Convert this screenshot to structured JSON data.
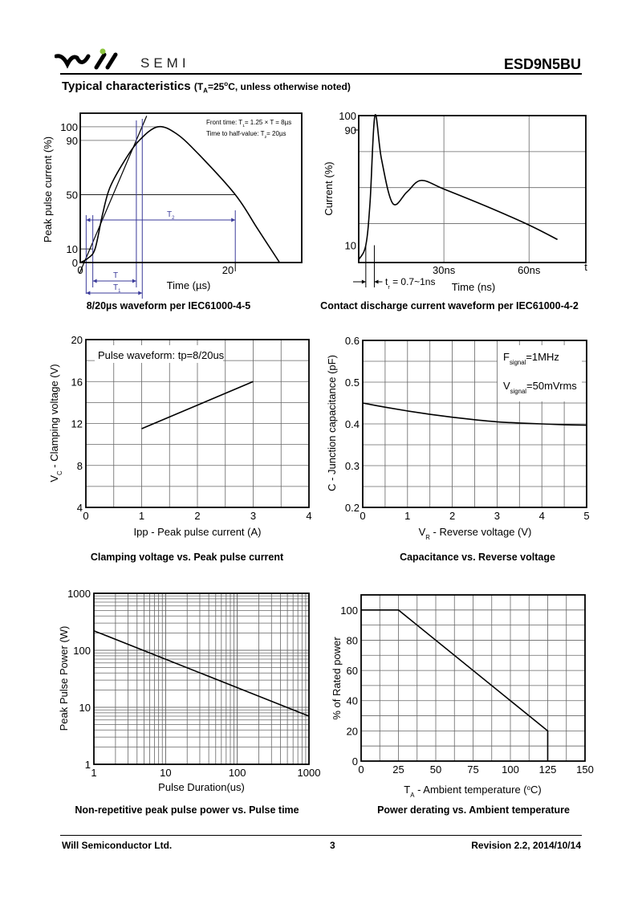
{
  "header": {
    "logo_text": "will",
    "brand": "SEMI",
    "part_number": "ESD9N5BU",
    "brand_color": "#000000",
    "logo_dot_color": "#8dc63f"
  },
  "section": {
    "title": "Typical characteristics",
    "cond_open": "(T",
    "cond_sub": "A",
    "cond_mid": "=25",
    "cond_sup": "o",
    "cond_end": "C, unless otherwise noted)"
  },
  "footer": {
    "company": "Will Semiconductor Ltd.",
    "page": "3",
    "revision": "Revision 2.2, 2014/10/14"
  },
  "chart_data": [
    {
      "type": "line",
      "title": "8/20µs waveform per IEC61000-4-5",
      "xlabel": "Time (µs)",
      "ylabel": "Peak pulse current (%)",
      "x_ticks": [
        {
          "v": 0,
          "label": "0"
        },
        {
          "v": 20,
          "label": "20"
        }
      ],
      "y_ticks": [
        {
          "v": 0,
          "label": "0"
        },
        {
          "v": 10,
          "label": "10"
        },
        {
          "v": 50,
          "label": "50"
        },
        {
          "v": 90,
          "label": "90"
        },
        {
          "v": 100,
          "label": "100"
        }
      ],
      "xlim": [
        0,
        30
      ],
      "ylim": [
        0,
        110
      ],
      "grid": false,
      "series": [
        {
          "x": [
            0,
            1,
            2,
            3,
            4,
            6,
            8,
            10.5,
            13,
            16,
            21,
            24,
            27
          ],
          "y": [
            0,
            3,
            10,
            35,
            55,
            75,
            90,
            100,
            95,
            80,
            50,
            25,
            0
          ]
        }
      ],
      "annotations": {
        "front_time_a": "Front time: T",
        "front_time_sub": "1",
        "front_time_b": "= 1.25 × T = 8µs",
        "half_time_a": "Time to half-value: T",
        "half_time_sub": "2",
        "half_time_b": "= 20µs",
        "T_label": "T",
        "T1_label": "T",
        "T1_sub": "1",
        "T2_label": "T",
        "T2_sub": "2",
        "annotation_color": "#3a3a9a"
      }
    },
    {
      "type": "line",
      "title": "Contact discharge current waveform per IEC61000-4-2",
      "xlabel": "Time (ns)",
      "ylabel": "Current (%)",
      "x_axis_end_label": "t",
      "x_ticks": [
        {
          "v": 30,
          "label": "30ns"
        },
        {
          "v": 60,
          "label": "60ns"
        }
      ],
      "y_ticks": [
        {
          "v": 10,
          "label": "10"
        },
        {
          "v": 90,
          "label": "90"
        },
        {
          "v": 100,
          "label": "100"
        }
      ],
      "xlim": [
        0,
        80
      ],
      "ylim": [
        -2,
        100
      ],
      "grid": true,
      "series": [
        {
          "x": [
            0,
            2.5,
            4,
            5.7,
            8,
            12,
            17,
            22,
            30,
            45,
            60,
            70
          ],
          "y": [
            0,
            10,
            40,
            100,
            70,
            39,
            47,
            55,
            49,
            37,
            24,
            14
          ]
        }
      ],
      "annotations": {
        "tr_a": "t",
        "tr_sub": "r",
        "tr_b": " = 0.7~1ns"
      }
    },
    {
      "type": "line",
      "title": "Clamping voltage vs. Peak pulse current",
      "xlabel": "Ipp - Peak pulse current (A)",
      "ylabel_a": "V",
      "ylabel_sub": "C",
      "ylabel_b": " - Clamping voltage (V)",
      "x_ticks": [
        {
          "v": 0,
          "label": "0"
        },
        {
          "v": 1,
          "label": "1"
        },
        {
          "v": 2,
          "label": "2"
        },
        {
          "v": 3,
          "label": "3"
        },
        {
          "v": 4,
          "label": "4"
        }
      ],
      "y_ticks": [
        {
          "v": 4,
          "label": "4"
        },
        {
          "v": 8,
          "label": "8"
        },
        {
          "v": 12,
          "label": "12"
        },
        {
          "v": 16,
          "label": "16"
        },
        {
          "v": 20,
          "label": "20"
        }
      ],
      "xlim": [
        0,
        4
      ],
      "ylim": [
        4,
        20
      ],
      "grid": true,
      "series": [
        {
          "x": [
            1,
            3
          ],
          "y": [
            11.5,
            16
          ]
        }
      ],
      "annotations": {
        "note": "Pulse waveform: tp=8/20us"
      }
    },
    {
      "type": "line",
      "title": "Capacitance vs. Reverse voltage",
      "xlabel_a": "V",
      "xlabel_sub": "R",
      "xlabel_b": " - Reverse voltage (V)",
      "ylabel": "C - Junction capacitance (pF)",
      "x_ticks": [
        {
          "v": 0,
          "label": "0"
        },
        {
          "v": 1,
          "label": "1"
        },
        {
          "v": 2,
          "label": "2"
        },
        {
          "v": 3,
          "label": "3"
        },
        {
          "v": 4,
          "label": "4"
        },
        {
          "v": 5,
          "label": "5"
        }
      ],
      "y_ticks": [
        {
          "v": 0.2,
          "label": "0.2"
        },
        {
          "v": 0.3,
          "label": "0.3"
        },
        {
          "v": 0.4,
          "label": "0.4"
        },
        {
          "v": 0.5,
          "label": "0.5"
        },
        {
          "v": 0.6,
          "label": "0.6"
        }
      ],
      "xlim": [
        0,
        5
      ],
      "ylim": [
        0.2,
        0.6
      ],
      "grid": true,
      "series": [
        {
          "x": [
            0,
            0.5,
            1,
            1.5,
            2,
            2.5,
            3,
            3.5,
            4,
            4.5,
            5
          ],
          "y": [
            0.45,
            0.44,
            0.431,
            0.423,
            0.416,
            0.41,
            0.405,
            0.402,
            0.4,
            0.398,
            0.397
          ]
        }
      ],
      "annotations": {
        "f_a": "F",
        "f_sub": "signal",
        "f_b": "=1MHz",
        "v_a": "V",
        "v_sub": "signal",
        "v_b": "=50mVrms"
      }
    },
    {
      "type": "line",
      "title": "Non-repetitive peak pulse power vs. Pulse time",
      "xlabel": "Pulse Duration(us)",
      "ylabel": "Peak Pulse Power (W)",
      "x_scale": "log",
      "y_scale": "log",
      "x_ticks": [
        {
          "v": 1,
          "label": "1"
        },
        {
          "v": 10,
          "label": "10"
        },
        {
          "v": 100,
          "label": "100"
        },
        {
          "v": 1000,
          "label": "1000"
        }
      ],
      "y_ticks": [
        {
          "v": 1,
          "label": "1"
        },
        {
          "v": 10,
          "label": "10"
        },
        {
          "v": 100,
          "label": "100"
        },
        {
          "v": 1000,
          "label": "1000"
        }
      ],
      "xlim": [
        1,
        1000
      ],
      "ylim": [
        1,
        1000
      ],
      "grid": true,
      "series": [
        {
          "x": [
            1,
            1000
          ],
          "y": [
            220,
            7
          ]
        }
      ]
    },
    {
      "type": "line",
      "title": "Power derating vs. Ambient temperature",
      "xlabel_a": "T",
      "xlabel_sub": "A",
      "xlabel_b": " - Ambient temperature (",
      "xlabel_sup": "o",
      "xlabel_c": "C)",
      "ylabel": "% of Rated power",
      "x_ticks": [
        {
          "v": 0,
          "label": "0"
        },
        {
          "v": 25,
          "label": "25"
        },
        {
          "v": 50,
          "label": "50"
        },
        {
          "v": 75,
          "label": "75"
        },
        {
          "v": 100,
          "label": "100"
        },
        {
          "v": 125,
          "label": "125"
        },
        {
          "v": 150,
          "label": "150"
        }
      ],
      "y_ticks": [
        {
          "v": 0,
          "label": "0"
        },
        {
          "v": 20,
          "label": "20"
        },
        {
          "v": 40,
          "label": "40"
        },
        {
          "v": 60,
          "label": "60"
        },
        {
          "v": 80,
          "label": "80"
        },
        {
          "v": 100,
          "label": "100"
        }
      ],
      "xlim": [
        0,
        150
      ],
      "ylim": [
        0,
        110
      ],
      "grid": true,
      "series": [
        {
          "x": [
            0,
            25,
            125,
            125
          ],
          "y": [
            100,
            100,
            20,
            0
          ]
        }
      ]
    }
  ]
}
